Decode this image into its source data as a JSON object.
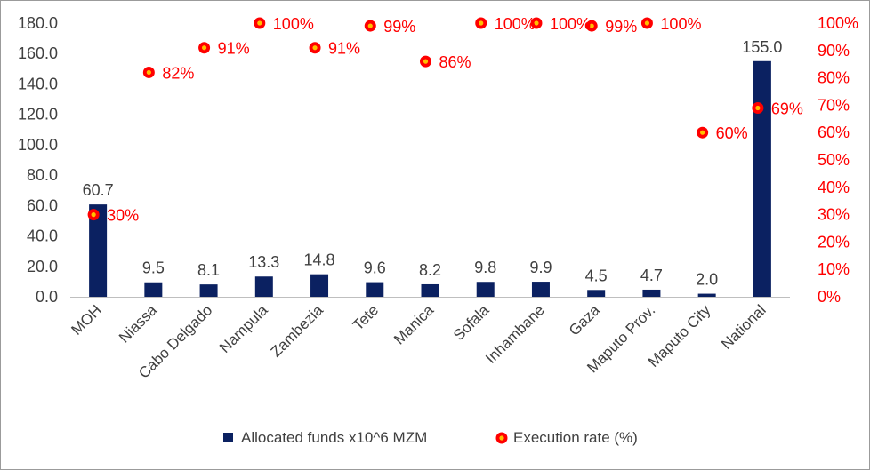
{
  "chart_data": {
    "type": "bar",
    "title": "",
    "categories": [
      "MOH",
      "Niassa",
      "Cabo Delgado",
      "Nampula",
      "Zambezia",
      "Tete",
      "Manica",
      "Sofala",
      "Inhambane",
      "Gaza",
      "Maputo Prov.",
      "Maputo City",
      "National"
    ],
    "series": [
      {
        "name": "Allocated funds x10^6 MZM",
        "type": "bar",
        "axis": "left",
        "color": "#0b2161",
        "values": [
          60.7,
          9.5,
          8.1,
          13.3,
          14.8,
          9.6,
          8.2,
          9.8,
          9.9,
          4.5,
          4.7,
          2.0,
          155.0
        ],
        "labels": [
          "60.7",
          "9.5",
          "8.1",
          "13.3",
          "14.8",
          "9.6",
          "8.2",
          "9.8",
          "9.9",
          "4.5",
          "4.7",
          "2.0",
          "155.0"
        ]
      },
      {
        "name": "Execution rate (%)",
        "type": "scatter",
        "axis": "right",
        "color": "#ff0000",
        "marker_inner_color": "#ffc000",
        "values": [
          30,
          82,
          91,
          100,
          91,
          99,
          86,
          100,
          100,
          99,
          100,
          60,
          69
        ],
        "labels": [
          "30%",
          "82%",
          "91%",
          "100%",
          "91%",
          "99%",
          "86%",
          "100%",
          "100%",
          "99%",
          "100%",
          "60%",
          "69%"
        ]
      }
    ],
    "y_left": {
      "min": 0,
      "max": 180,
      "step": 20,
      "tick_labels": [
        "0.0",
        "20.0",
        "40.0",
        "60.0",
        "80.0",
        "100.0",
        "120.0",
        "140.0",
        "160.0",
        "180.0"
      ]
    },
    "y_right": {
      "min": 0,
      "max": 100,
      "step": 10,
      "tick_labels": [
        "0%",
        "10%",
        "20%",
        "30%",
        "40%",
        "50%",
        "60%",
        "70%",
        "80%",
        "90%",
        "100%"
      ]
    },
    "legend": {
      "position": "bottom",
      "entries": [
        "Allocated funds x10^6 MZM",
        "Execution rate (%)"
      ]
    },
    "grid": false
  }
}
